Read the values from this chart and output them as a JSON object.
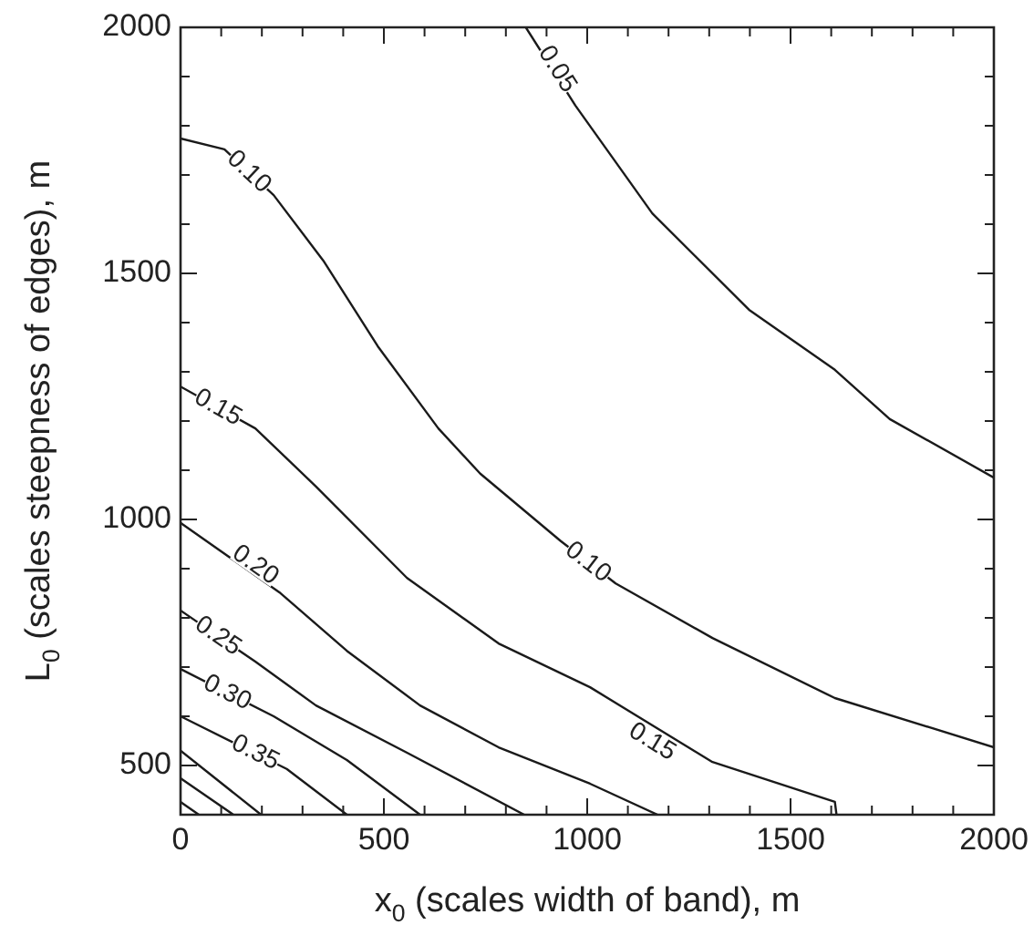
{
  "chart_data": {
    "type": "line",
    "xlabel": "x$_{0}$ (scales width of band), m",
    "ylabel": "L$_{0}$ (scales steepness of edges), m",
    "xlim": [
      0,
      2000
    ],
    "ylim": [
      400,
      2000
    ],
    "xticks": [
      0,
      {
        "value": 100,
        "label": null
      },
      {
        "value": 200,
        "label": null
      },
      {
        "value": 300,
        "label": null
      },
      {
        "value": 400,
        "label": null
      },
      500,
      {
        "value": 600,
        "label": null
      },
      {
        "value": 700,
        "label": null
      },
      {
        "value": 800,
        "label": null
      },
      {
        "value": 900,
        "label": null
      },
      1000,
      {
        "value": 1100,
        "label": null
      },
      {
        "value": 1200,
        "label": null
      },
      {
        "value": 1300,
        "label": null
      },
      {
        "value": 1400,
        "label": null
      },
      1500,
      {
        "value": 1600,
        "label": null
      },
      {
        "value": 1700,
        "label": null
      },
      {
        "value": 1800,
        "label": null
      },
      {
        "value": 1900,
        "label": null
      },
      2000
    ],
    "yticks": [
      {
        "value": 400,
        "label": null
      },
      500,
      {
        "value": 600,
        "label": null
      },
      {
        "value": 700,
        "label": null
      },
      {
        "value": 800,
        "label": null
      },
      {
        "value": 900,
        "label": null
      },
      1000,
      {
        "value": 1100,
        "label": null
      },
      {
        "value": 1200,
        "label": null
      },
      {
        "value": 1300,
        "label": null
      },
      {
        "value": 1400,
        "label": null
      },
      1500,
      {
        "value": 1600,
        "label": null
      },
      {
        "value": 1700,
        "label": null
      },
      {
        "value": 1800,
        "label": null
      },
      {
        "value": 1900,
        "label": null
      },
      2000
    ],
    "grid": false,
    "legend": false,
    "marker": "none",
    "line_style": "solid",
    "series": [
      {
        "color": "#1a1a1a",
        "x": [
          849,
          971,
          1160,
          1398,
          1609,
          1744,
          2000
        ],
        "values": [
          2000,
          1841,
          1622,
          1426,
          1304,
          1204,
          1085
        ]
      },
      {
        "color": "#1a1a1a",
        "x": [
          0,
          108,
          229,
          351,
          485,
          634,
          737,
          935,
          1070,
          1308,
          1609,
          2000
        ],
        "values": [
          1774,
          1752,
          1659,
          1526,
          1352,
          1185,
          1093,
          956,
          870,
          759,
          637,
          537
        ]
      },
      {
        "color": "#1a1a1a",
        "x": [
          0,
          184,
          333,
          557,
          782,
          1007,
          1308,
          1609,
          1613
        ],
        "values": [
          1270,
          1185,
          1067,
          881,
          748,
          659,
          507,
          426,
          400
        ]
      },
      {
        "color": "#1a1a1a",
        "x": [
          0,
          243,
          409,
          589,
          782,
          1007,
          1173
        ],
        "values": [
          993,
          852,
          733,
          622,
          537,
          463,
          400
        ]
      },
      {
        "color": "#1a1a1a",
        "x": [
          0,
          184,
          333,
          557,
          845
        ],
        "values": [
          815,
          711,
          622,
          526,
          400
        ]
      },
      {
        "color": "#1a1a1a",
        "x": [
          0,
          229,
          409,
          589
        ],
        "values": [
          696,
          600,
          511,
          400
        ]
      },
      {
        "color": "#1a1a1a",
        "x": [
          0,
          261,
          409
        ],
        "values": [
          600,
          493,
          400
        ]
      },
      {
        "color": "#1a1a1a",
        "x": [
          0,
          198
        ],
        "values": [
          530,
          400
        ]
      },
      {
        "color": "#1a1a1a",
        "x": [
          0,
          130
        ],
        "values": [
          474,
          400
        ]
      },
      {
        "color": "#1a1a1a",
        "x": [
          0,
          45
        ],
        "values": [
          426,
          400
        ]
      }
    ],
    "annotations": [
      {
        "text": "0.05",
        "x": 926,
        "y": 1915
      },
      {
        "text": "0.10",
        "x": 168,
        "y": 1706
      },
      {
        "text": "0.10",
        "x": 1002,
        "y": 913
      },
      {
        "text": "0.15",
        "x": 92,
        "y": 1227
      },
      {
        "text": "0.15",
        "x": 1160,
        "y": 548
      },
      {
        "text": "0.20",
        "x": 184,
        "y": 907
      },
      {
        "text": "0.25",
        "x": 92,
        "y": 763
      },
      {
        "text": "0.30",
        "x": 115,
        "y": 648
      },
      {
        "text": "0.35",
        "x": 184,
        "y": 526
      }
    ]
  }
}
